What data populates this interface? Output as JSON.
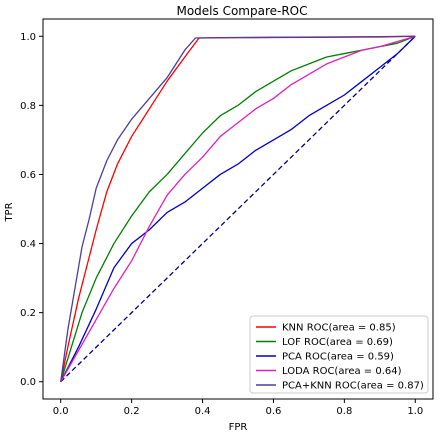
{
  "chart_data": {
    "type": "line",
    "title": "Models Compare-ROC",
    "xlabel": "FPR",
    "ylabel": "TPR",
    "xlim": [
      -0.05,
      1.05
    ],
    "ylim": [
      -0.05,
      1.05
    ],
    "x_ticks": [
      "0.0",
      "0.2",
      "0.4",
      "0.6",
      "0.8",
      "1.0"
    ],
    "y_ticks": [
      "0.0",
      "0.2",
      "0.4",
      "0.6",
      "0.8",
      "1.0"
    ],
    "grid": false,
    "legend_position": "lower-right",
    "series": [
      {
        "name": "KNN ROC(area = 0.85)",
        "color": "#ff0000",
        "x": [
          0,
          0.02,
          0.05,
          0.08,
          0.1,
          0.13,
          0.16,
          0.2,
          0.25,
          0.3,
          0.35,
          0.39,
          0.5,
          0.7,
          0.9,
          1.0
        ],
        "y": [
          0,
          0.1,
          0.24,
          0.36,
          0.44,
          0.55,
          0.63,
          0.71,
          0.79,
          0.87,
          0.94,
          0.995,
          0.996,
          0.997,
          0.998,
          1.0
        ]
      },
      {
        "name": "LOF ROC(area = 0.69)",
        "color": "#008000",
        "x": [
          0,
          0.03,
          0.06,
          0.1,
          0.15,
          0.2,
          0.25,
          0.3,
          0.35,
          0.4,
          0.45,
          0.5,
          0.55,
          0.6,
          0.65,
          0.7,
          0.75,
          0.8,
          0.85,
          0.9,
          0.95,
          1.0
        ],
        "y": [
          0,
          0.1,
          0.2,
          0.3,
          0.4,
          0.48,
          0.55,
          0.6,
          0.66,
          0.72,
          0.77,
          0.8,
          0.84,
          0.87,
          0.9,
          0.92,
          0.94,
          0.95,
          0.96,
          0.97,
          0.98,
          1.0
        ]
      },
      {
        "name": "PCA ROC(area = 0.59)",
        "color": "#0000cc",
        "x": [
          0,
          0.05,
          0.1,
          0.15,
          0.2,
          0.25,
          0.3,
          0.35,
          0.4,
          0.45,
          0.5,
          0.55,
          0.6,
          0.65,
          0.7,
          0.75,
          0.8,
          0.85,
          0.9,
          0.95,
          1.0
        ],
        "y": [
          0,
          0.1,
          0.21,
          0.33,
          0.4,
          0.44,
          0.49,
          0.52,
          0.56,
          0.6,
          0.63,
          0.67,
          0.7,
          0.73,
          0.77,
          0.8,
          0.83,
          0.87,
          0.91,
          0.95,
          1.0
        ]
      },
      {
        "name": "LODA ROC(area = 0.64)",
        "color": "#e020c0",
        "x": [
          0,
          0.05,
          0.1,
          0.15,
          0.2,
          0.25,
          0.3,
          0.35,
          0.4,
          0.45,
          0.5,
          0.55,
          0.6,
          0.65,
          0.7,
          0.75,
          0.8,
          0.85,
          0.9,
          0.95,
          1.0
        ],
        "y": [
          0,
          0.09,
          0.18,
          0.27,
          0.35,
          0.45,
          0.54,
          0.6,
          0.65,
          0.71,
          0.75,
          0.79,
          0.82,
          0.86,
          0.89,
          0.92,
          0.94,
          0.96,
          0.97,
          0.985,
          1.0
        ]
      },
      {
        "name": "PCA+KNN ROC(area = 0.87)",
        "color": "#4b3e9c",
        "x": [
          0,
          0.02,
          0.04,
          0.06,
          0.08,
          0.1,
          0.13,
          0.16,
          0.2,
          0.25,
          0.3,
          0.35,
          0.38,
          0.45,
          0.6,
          0.8,
          1.0
        ],
        "y": [
          0,
          0.15,
          0.27,
          0.39,
          0.47,
          0.56,
          0.64,
          0.7,
          0.76,
          0.82,
          0.88,
          0.96,
          0.995,
          0.996,
          0.997,
          0.998,
          1.0
        ]
      }
    ],
    "reference_line": {
      "color": "#000080",
      "style": "dashed",
      "x": [
        0,
        1
      ],
      "y": [
        0,
        1
      ]
    }
  }
}
